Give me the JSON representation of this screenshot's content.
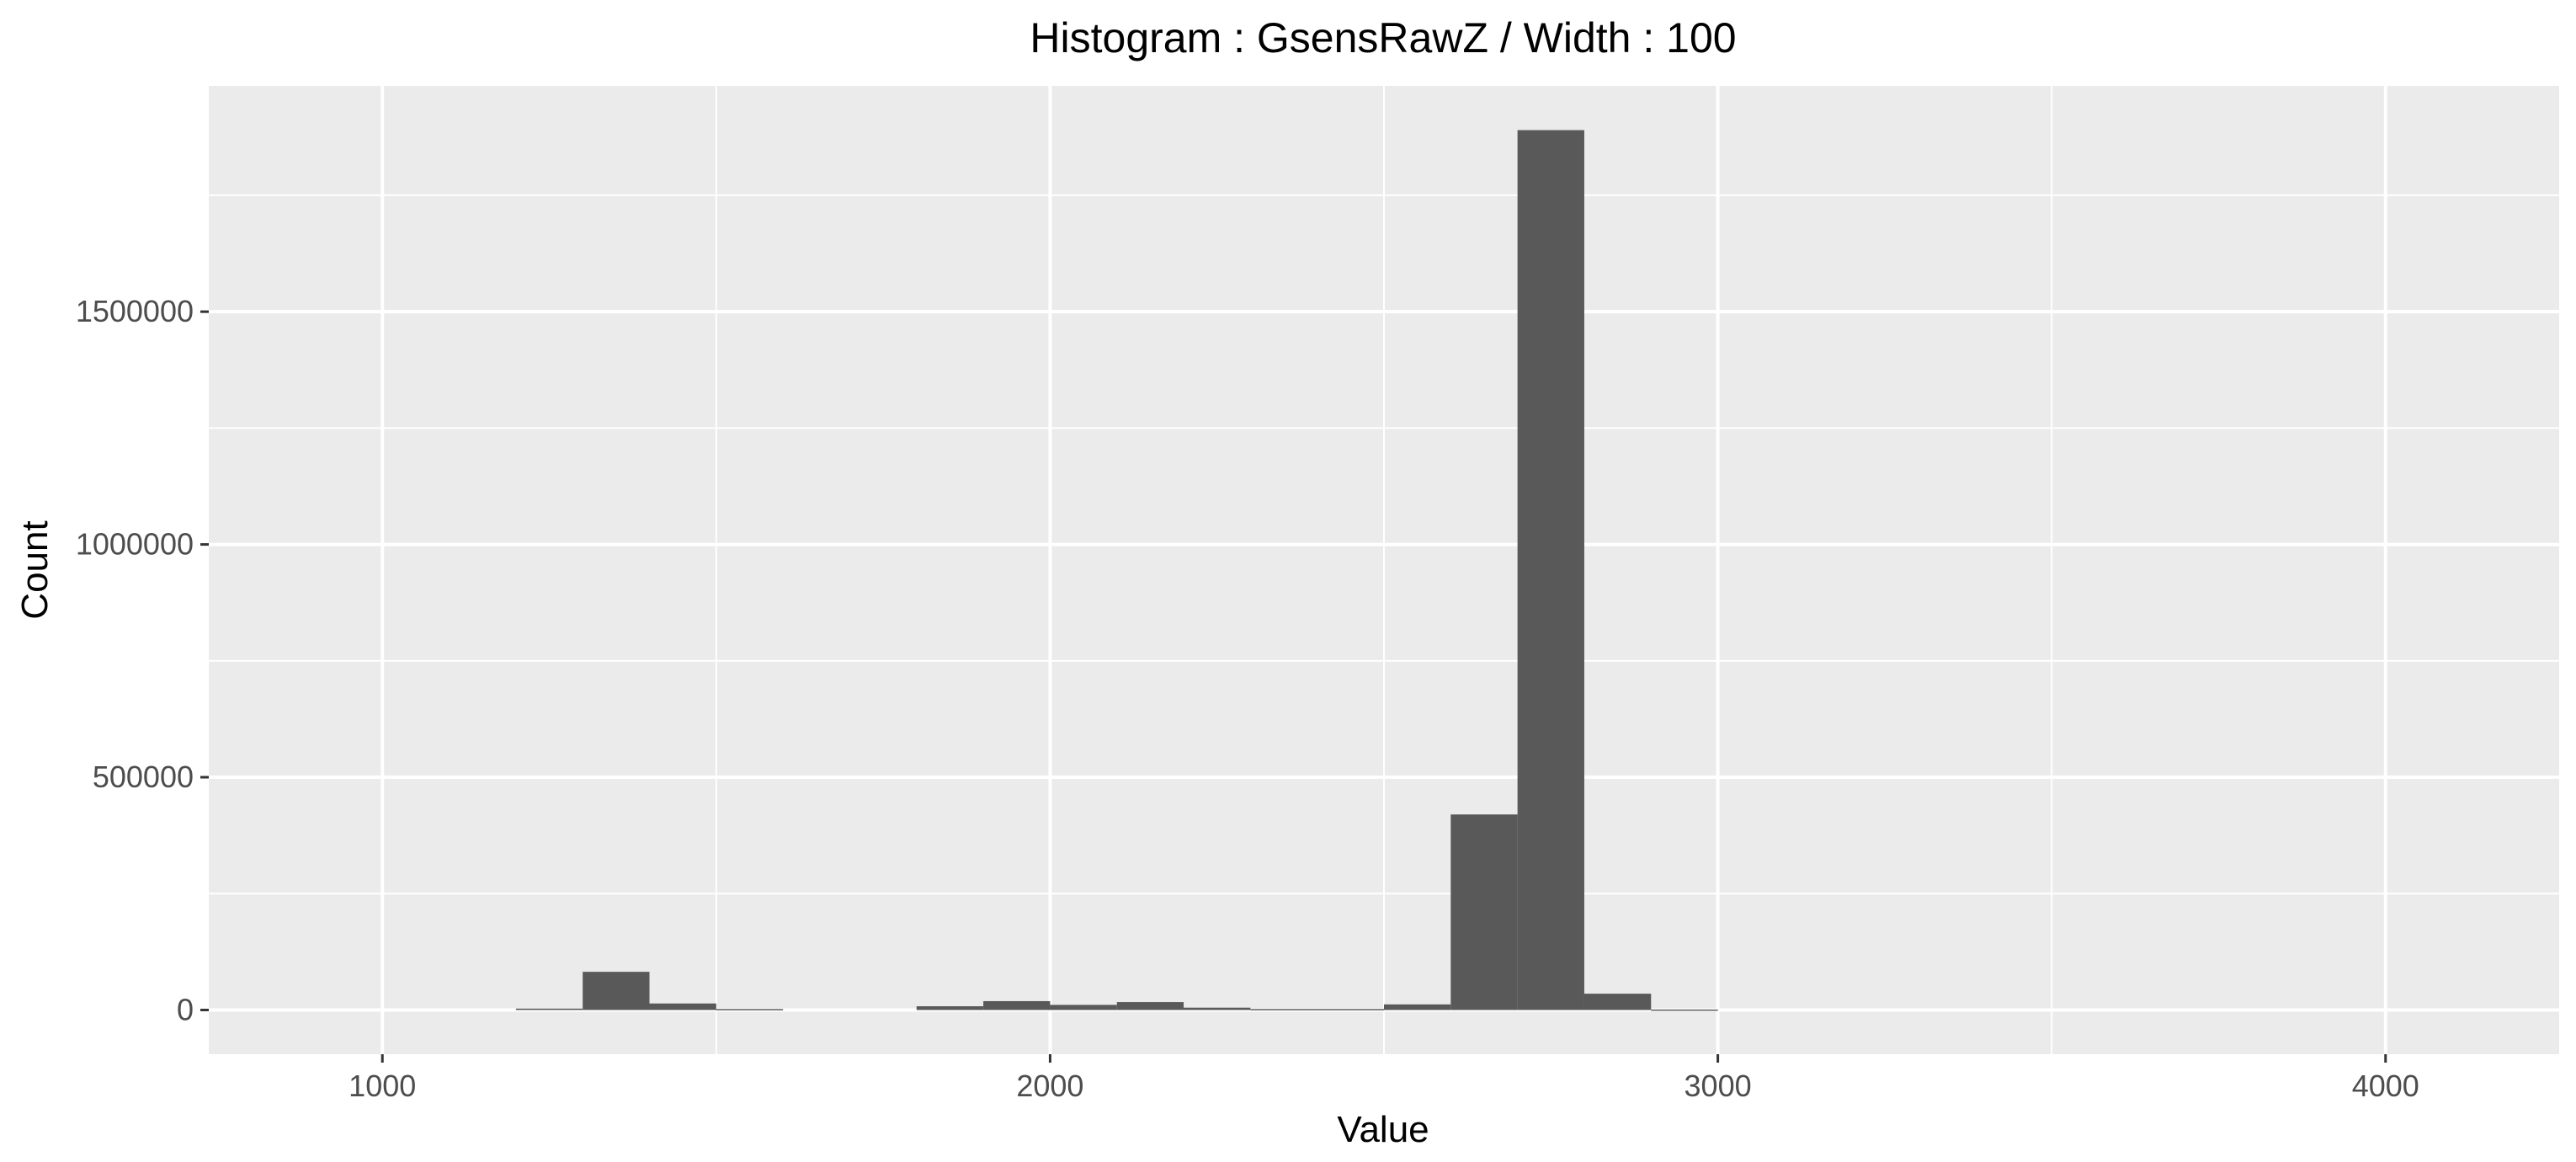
{
  "chart_data": {
    "type": "bar",
    "title": "Histogram : GsensRawZ / Width : 100",
    "xlabel": "Value",
    "ylabel": "Count",
    "bin_width": 100,
    "xlim": [
      740,
      4260
    ],
    "ylim": [
      -95000,
      1985000
    ],
    "x_ticks": [
      1000,
      2000,
      3000,
      4000
    ],
    "x_tick_labels": [
      "1000",
      "2000",
      "3000",
      "4000"
    ],
    "x_minor_ticks": [
      1500,
      2500,
      3500
    ],
    "y_ticks": [
      0,
      500000,
      1000000,
      1500000
    ],
    "y_tick_labels": [
      "0",
      "500000",
      "1000000",
      "1500000"
    ],
    "y_minor_ticks": [
      250000,
      750000,
      1250000,
      1750000
    ],
    "grid": true,
    "bar_color": "#595959",
    "panel_color": "#ebebeb",
    "grid_color": "#ffffff",
    "bins": [
      {
        "x0": 1200,
        "x1": 1300,
        "count": 3000
      },
      {
        "x0": 1300,
        "x1": 1400,
        "count": 82000
      },
      {
        "x0": 1400,
        "x1": 1500,
        "count": 14000
      },
      {
        "x0": 1500,
        "x1": 1600,
        "count": 2000
      },
      {
        "x0": 1800,
        "x1": 1900,
        "count": 8000
      },
      {
        "x0": 1900,
        "x1": 2000,
        "count": 19000
      },
      {
        "x0": 2000,
        "x1": 2100,
        "count": 11000
      },
      {
        "x0": 2100,
        "x1": 2200,
        "count": 17000
      },
      {
        "x0": 2200,
        "x1": 2300,
        "count": 5000
      },
      {
        "x0": 2300,
        "x1": 2400,
        "count": 2000
      },
      {
        "x0": 2400,
        "x1": 2500,
        "count": 2000
      },
      {
        "x0": 2500,
        "x1": 2600,
        "count": 12000
      },
      {
        "x0": 2600,
        "x1": 2700,
        "count": 420000
      },
      {
        "x0": 2700,
        "x1": 2800,
        "count": 1890000
      },
      {
        "x0": 2800,
        "x1": 2900,
        "count": 35000
      },
      {
        "x0": 2900,
        "x1": 3000,
        "count": 1000
      }
    ]
  }
}
